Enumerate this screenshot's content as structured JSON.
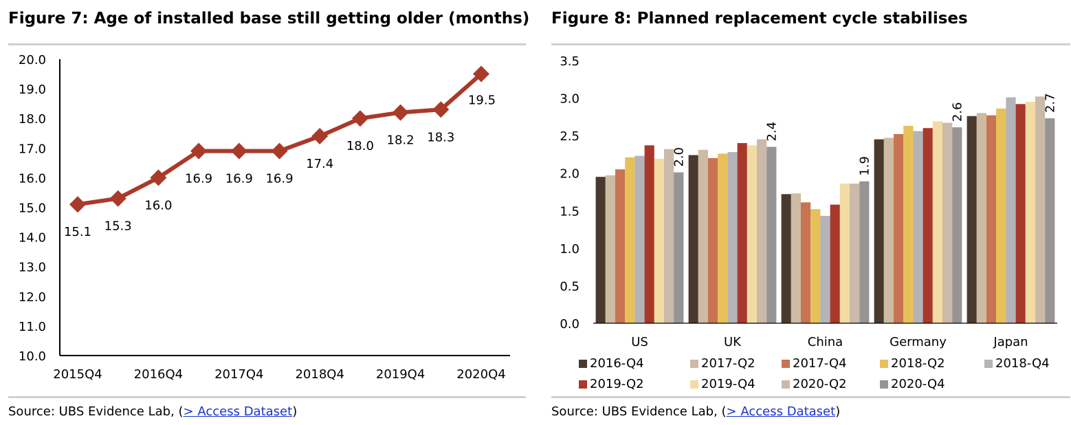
{
  "left": {
    "title": "Figure 7: Age of installed base still getting older (months)",
    "source_prefix": "Source:  UBS Evidence Lab, (",
    "source_link": "> Access Dataset",
    "source_suffix": ")"
  },
  "right": {
    "title": "Figure 8: Planned replacement cycle stabilises",
    "source_prefix": "Source:  UBS Evidence Lab, (",
    "source_link": "> Access Dataset",
    "source_suffix": ")"
  },
  "chart_data": [
    {
      "type": "line",
      "title": "Figure 7: Age of installed base still getting older (months)",
      "x_tick_labels": [
        "2015Q4",
        "2016Q4",
        "2017Q4",
        "2018Q4",
        "2019Q4",
        "2020Q4"
      ],
      "series": [
        {
          "values": [
            15.1,
            15.3,
            16.0,
            16.9,
            16.9,
            16.9,
            17.4,
            18.0,
            18.2,
            18.3,
            19.5
          ],
          "data_labels": [
            "15.1",
            "15.3",
            "16.0",
            "16.9",
            "16.9",
            "16.9",
            "17.4",
            "18.0",
            "18.2",
            "18.3",
            "19.5"
          ],
          "color": "#a93a2a"
        }
      ],
      "ylim": [
        10.0,
        20.0
      ],
      "y_ticks": [
        "10.0",
        "11.0",
        "12.0",
        "13.0",
        "14.0",
        "15.0",
        "16.0",
        "17.0",
        "18.0",
        "19.0",
        "20.0"
      ],
      "grid": false,
      "legend": "none"
    },
    {
      "type": "bar",
      "title": "Figure 8: Planned replacement cycle stabilises",
      "categories": [
        "US",
        "UK",
        "China",
        "Germany",
        "Japan"
      ],
      "series": [
        {
          "name": "2016-Q4",
          "color": "#4a3a2e",
          "values": [
            1.95,
            2.24,
            1.72,
            2.45,
            2.76
          ]
        },
        {
          "name": "2017-Q2",
          "color": "#cdbba3",
          "values": [
            1.97,
            2.31,
            1.73,
            2.47,
            2.8
          ]
        },
        {
          "name": "2017-Q4",
          "color": "#c87352",
          "values": [
            2.05,
            2.2,
            1.61,
            2.52,
            2.77
          ]
        },
        {
          "name": "2018-Q2",
          "color": "#e8c05a",
          "values": [
            2.21,
            2.26,
            1.52,
            2.63,
            2.86
          ]
        },
        {
          "name": "2018-Q4",
          "color": "#b3b3b8",
          "values": [
            2.23,
            2.28,
            1.43,
            2.56,
            3.01
          ]
        },
        {
          "name": "2019-Q2",
          "color": "#a8382b",
          "values": [
            2.37,
            2.4,
            1.58,
            2.6,
            2.92
          ]
        },
        {
          "name": "2019-Q4",
          "color": "#f2dca3",
          "values": [
            2.19,
            2.37,
            1.86,
            2.69,
            2.95
          ]
        },
        {
          "name": "2020-Q2",
          "color": "#cbb9a9",
          "values": [
            2.32,
            2.45,
            1.86,
            2.67,
            3.02
          ]
        },
        {
          "name": "2020-Q4",
          "color": "#979593",
          "values": [
            2.01,
            2.35,
            1.89,
            2.61,
            2.73
          ]
        }
      ],
      "data_labels": [
        "2.0",
        "2.4",
        "1.9",
        "2.6",
        "2.7"
      ],
      "ylim": [
        0.0,
        3.5
      ],
      "y_ticks": [
        "0.0",
        "0.5",
        "1.0",
        "1.5",
        "2.0",
        "2.5",
        "3.0",
        "3.5"
      ],
      "grid": false,
      "legend": "bottom"
    }
  ]
}
